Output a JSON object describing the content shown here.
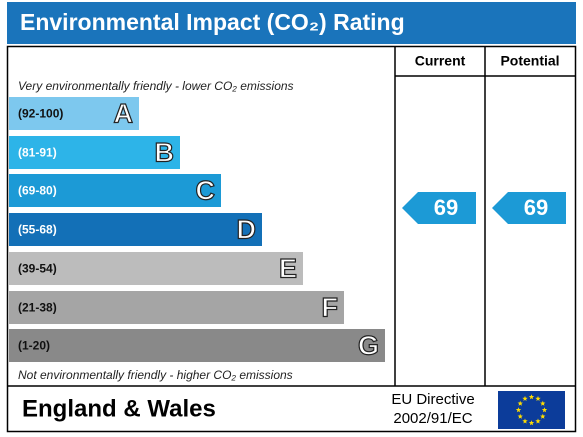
{
  "title": "Environmental Impact (CO₂) Rating",
  "columns": {
    "current": "Current",
    "potential": "Potential"
  },
  "top_note": "Very environmentally friendly - lower CO₂ emissions",
  "bottom_note": "Not environmentally friendly - higher CO₂ emissions",
  "bands": [
    {
      "range": "(92-100)",
      "letter": "A",
      "color": "#7dc8ee"
    },
    {
      "range": "(81-91)",
      "letter": "B",
      "color": "#2db4e8"
    },
    {
      "range": "(69-80)",
      "letter": "C",
      "color": "#1c9ad6"
    },
    {
      "range": "(55-68)",
      "letter": "D",
      "color": "#1370b7"
    },
    {
      "range": "(39-54)",
      "letter": "E",
      "color": "#bcbcbc"
    },
    {
      "range": "(21-38)",
      "letter": "F",
      "color": "#a5a5a5"
    },
    {
      "range": "(1-20)",
      "letter": "G",
      "color": "#898989"
    }
  ],
  "current": {
    "value": 69,
    "color": "#1c9ad6"
  },
  "potential": {
    "value": 69,
    "color": "#1c9ad6"
  },
  "footer": {
    "region": "England & Wales",
    "directive_line1": "EU Directive",
    "directive_line2": "2002/91/EC"
  }
}
